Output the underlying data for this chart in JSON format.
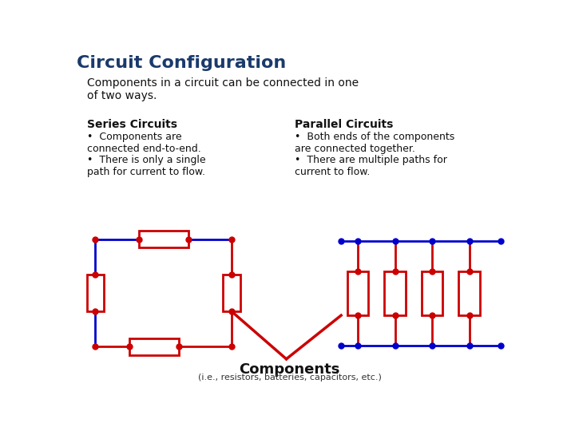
{
  "title": "Circuit Configuration",
  "subtitle": "Components in a circuit can be connected in one\nof two ways.",
  "title_color": "#1a3a6b",
  "title_fontsize": 16,
  "subtitle_fontsize": 10,
  "series_heading": "Series Circuits",
  "series_bullets_1": "Components are\nconnected end-to-end.",
  "series_bullets_2": "There is only a single\npath for current to flow.",
  "parallel_heading": "Parallel Circuits",
  "parallel_bullets_1": "Both ends of the components\nare connected together.",
  "parallel_bullets_2": "There are multiple paths for\ncurrent to flow.",
  "bullet_fontsize": 9,
  "heading_fontsize": 10,
  "wire_color_blue": "#0000cc",
  "wire_color_red": "#cc0000",
  "dot_color_red": "#cc0000",
  "dot_color_blue": "#0000cc",
  "components_label": "Components",
  "components_sub": "(i.e., resistors, batteries, capacitors, etc.)",
  "bg_color": "#ffffff"
}
